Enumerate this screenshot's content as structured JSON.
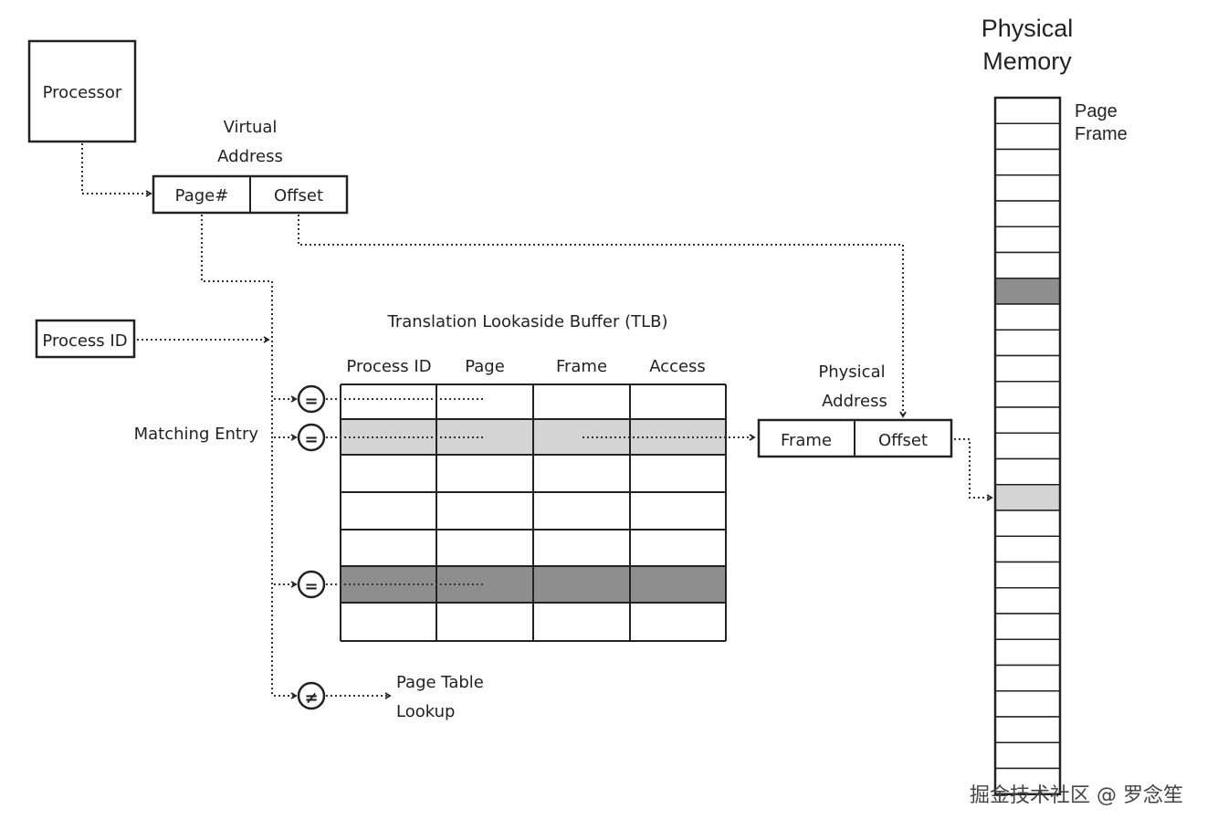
{
  "processor": {
    "label": "Processor"
  },
  "virtual_address": {
    "title_line1": "Virtual",
    "title_line2": "Address",
    "page_field": "Page#",
    "offset_field": "Offset"
  },
  "process_id_box": {
    "label": "Process ID"
  },
  "tlb": {
    "title": "Translation Lookaside Buffer (TLB)",
    "columns": [
      "Process ID",
      "Page",
      "Frame",
      "Access"
    ],
    "row_fills": [
      "#ffffff",
      "#d4d4d4",
      "#ffffff",
      "#ffffff",
      "#ffffff",
      "#8e8e8e",
      "#ffffff"
    ]
  },
  "matching_entry": {
    "label": "Matching Entry"
  },
  "comparators": {
    "equal_symbol": "=",
    "not_equal_symbol": "≠"
  },
  "page_table_lookup": {
    "line1": "Page Table",
    "line2": "Lookup"
  },
  "physical_address": {
    "title_line1": "Physical",
    "title_line2": "Address",
    "frame_field": "Frame",
    "offset_field": "Offset"
  },
  "physical_memory": {
    "title_line1": "Physical",
    "title_line2": "Memory",
    "frame_label_line1": "Page",
    "frame_label_line2": "Frame",
    "highlight_colors": {
      "dark": "#8e8e8e",
      "light": "#d4d4d4"
    }
  },
  "watermark": "掘金技术社区 @ 罗念笙"
}
